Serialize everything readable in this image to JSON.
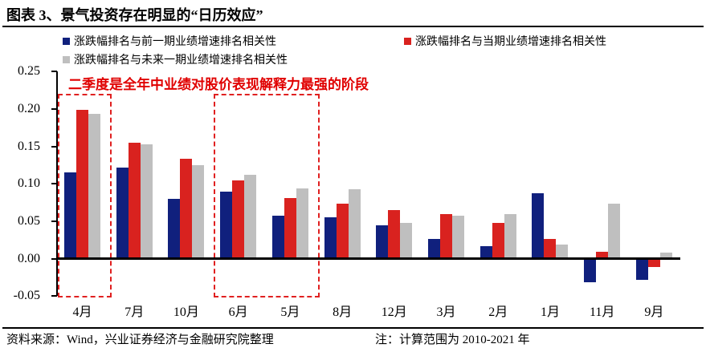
{
  "header": {
    "title": "图表 3、景气投资存在明显的“日历效应”"
  },
  "legend": [
    {
      "label": "涨跌幅排名与前一期业绩增速排名相关性",
      "color": "#10207d"
    },
    {
      "label": "涨跌幅排名与当期业绩增速排名相关性",
      "color": "#d9221f"
    },
    {
      "label": "涨跌幅排名与未来一期业绩增速排名相关性",
      "color": "#bfbfbf"
    }
  ],
  "annotation": {
    "text": "二季度是全年中业绩对股价表现解释力最强的阶段",
    "color": "#e00000"
  },
  "chart_data": {
    "type": "bar",
    "title": "图表 3、景气投资存在明显的“日历效应”",
    "xlabel": "",
    "ylabel": "",
    "categories": [
      "4月",
      "7月",
      "10月",
      "6月",
      "5月",
      "8月",
      "12月",
      "3月",
      "2月",
      "1月",
      "11月",
      "9月"
    ],
    "series": [
      {
        "key": "prev",
        "name": "涨跌幅排名与前一期业绩增速排名相关性",
        "color": "#10207d",
        "values": [
          0.115,
          0.122,
          0.08,
          0.089,
          0.057,
          0.055,
          0.045,
          0.026,
          0.017,
          0.087,
          -0.032,
          -0.028
        ]
      },
      {
        "key": "current",
        "name": "涨跌幅排名与当期业绩增速排名相关性",
        "color": "#d9221f",
        "values": [
          0.199,
          0.155,
          0.133,
          0.105,
          0.081,
          0.073,
          0.065,
          0.059,
          0.048,
          0.026,
          0.009,
          -0.011
        ]
      },
      {
        "key": "next",
        "name": "涨跌幅排名与未来一期业绩增速排名相关性",
        "color": "#bfbfbf",
        "values": [
          0.193,
          0.153,
          0.125,
          0.112,
          0.094,
          0.093,
          0.048,
          0.057,
          0.059,
          0.019,
          0.073,
          0.008
        ]
      }
    ],
    "yticks": [
      0.25,
      0.2,
      0.15,
      0.1,
      0.05,
      0.0,
      -0.05
    ],
    "ylim": [
      -0.05,
      0.25
    ],
    "grid": false,
    "legend_position": "top",
    "highlight_boxes": [
      {
        "from": 0,
        "to": 0,
        "months": [
          "4月"
        ]
      },
      {
        "from": 3,
        "to": 4,
        "months": [
          "6月",
          "5月"
        ]
      }
    ],
    "highlight_color": "#e02020"
  },
  "footer": {
    "source": "资料来源：Wind，兴业证券经济与金融研究院整理",
    "note": "注：计算范围为 2010-2021 年"
  }
}
